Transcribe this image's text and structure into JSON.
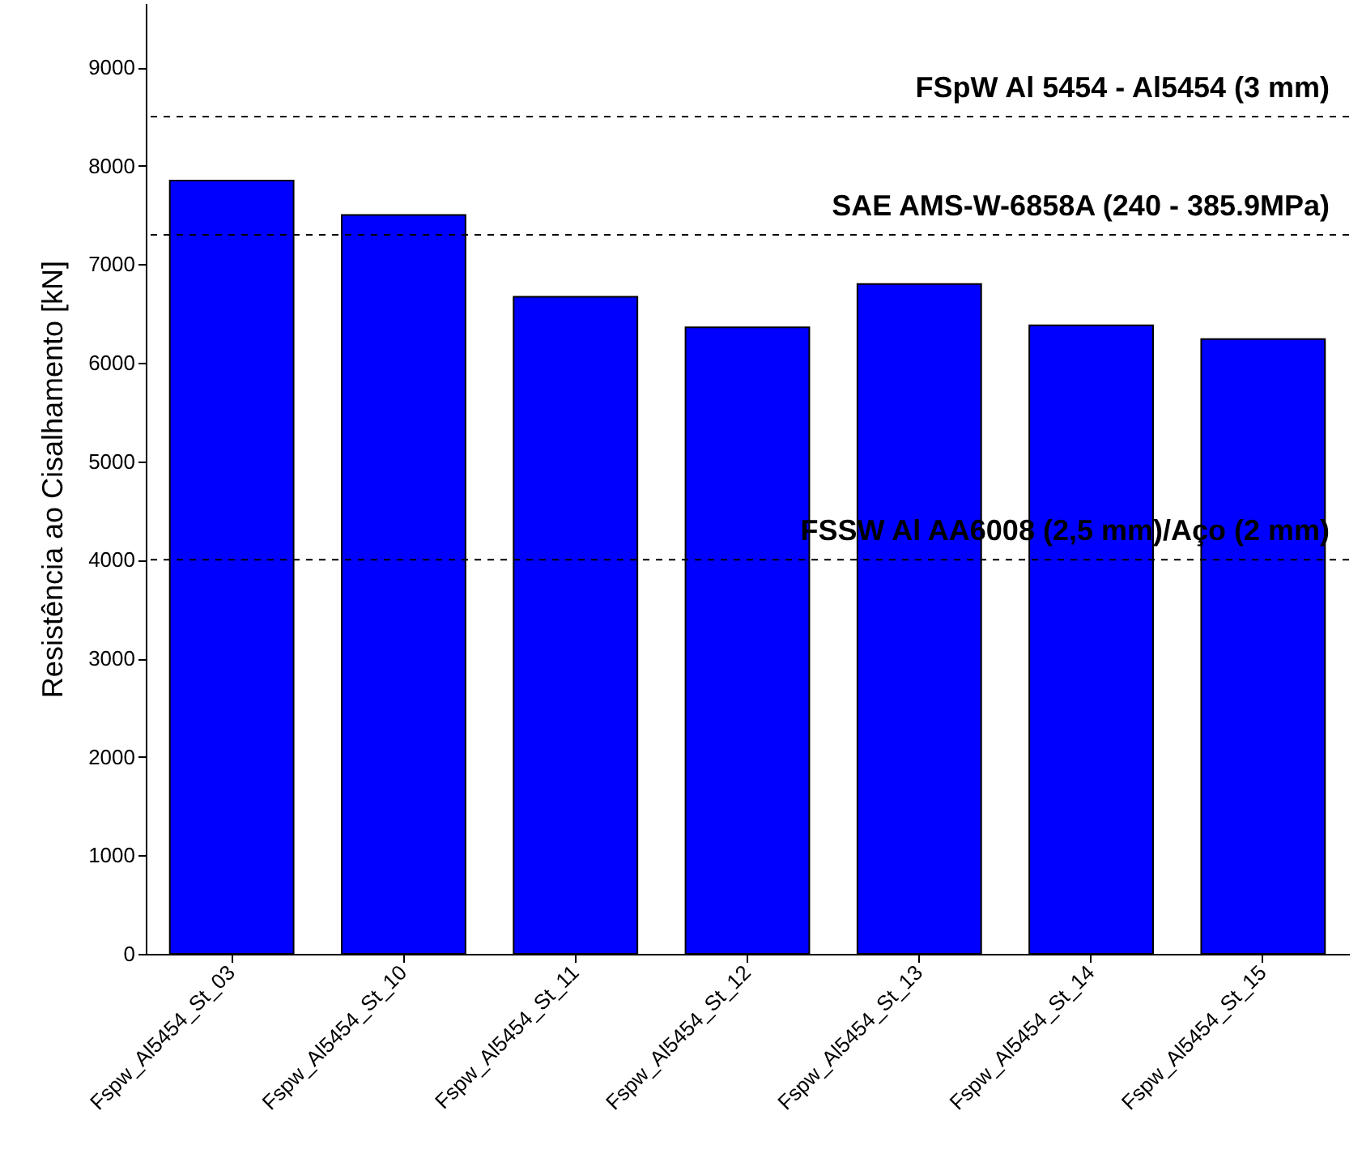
{
  "chart_data": {
    "type": "bar",
    "ylabel": "Resistência ao Cisalhamento [kN]",
    "categories": [
      "Fspw_Al5454_St_03",
      "Fspw_Al5454_St_10",
      "Fspw_Al5454_St_11",
      "Fspw_Al5454_St_12",
      "Fspw_Al5454_St_13",
      "Fspw_Al5454_St_14",
      "Fspw_Al5454_St_15"
    ],
    "values": [
      7850,
      7500,
      6670,
      6360,
      6800,
      6380,
      6240
    ],
    "color": "#0000ff",
    "ylim": [
      0,
      9650
    ],
    "yticks": [
      0,
      1000,
      2000,
      3000,
      4000,
      5000,
      6000,
      7000,
      8000,
      9000
    ],
    "ref_lines": [
      {
        "axis": "y",
        "value": 8500,
        "label": "FSpW Al 5454 - Al5454 (3 mm)",
        "line_style": "dashed",
        "color": "#000000"
      },
      {
        "axis": "y",
        "value": 7300,
        "label": "SAE AMS-W-6858A (240 - 385.9MPa)",
        "line_style": "dashed",
        "color": "#000000"
      },
      {
        "axis": "y",
        "value": 4000,
        "label": "FSSW Al AA6008 (2,5 mm)/Aço (2 mm)",
        "line_style": "dashed",
        "color": "#000000"
      }
    ],
    "grid": false
  }
}
